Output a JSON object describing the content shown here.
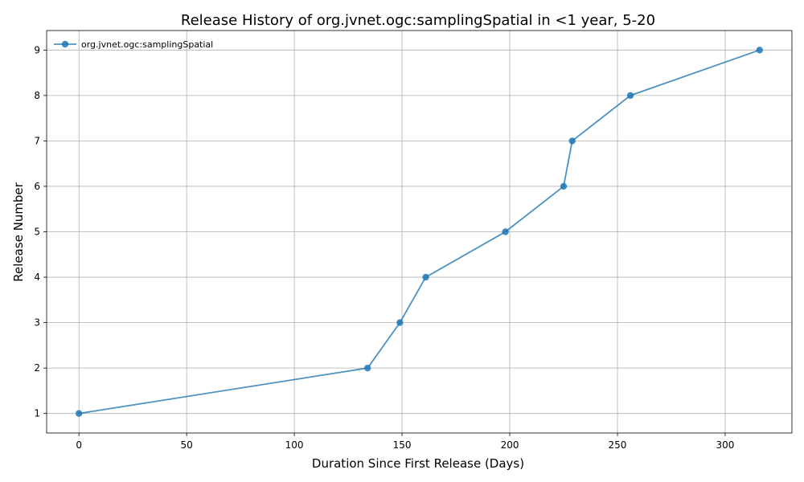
{
  "chart_data": {
    "type": "line",
    "title": "Release History of org.jvnet.ogc:samplingSpatial in <1 year, 5-20",
    "xlabel": "Duration Since First Release (Days)",
    "ylabel": "Release Number",
    "xlim": [
      -15,
      331
    ],
    "ylim": [
      0.57,
      9.43
    ],
    "xticks": [
      0,
      50,
      100,
      150,
      200,
      250,
      300
    ],
    "yticks": [
      1,
      2,
      3,
      4,
      5,
      6,
      7,
      8,
      9
    ],
    "grid": true,
    "legend_position": "top-left",
    "series": [
      {
        "name": "org.jvnet.ogc:samplingSpatial",
        "color": "#1f77b4",
        "x": [
          0,
          134,
          149,
          161,
          198,
          225,
          229,
          256,
          316
        ],
        "y": [
          1,
          2,
          3,
          4,
          5,
          6,
          7,
          8,
          9
        ]
      }
    ]
  }
}
